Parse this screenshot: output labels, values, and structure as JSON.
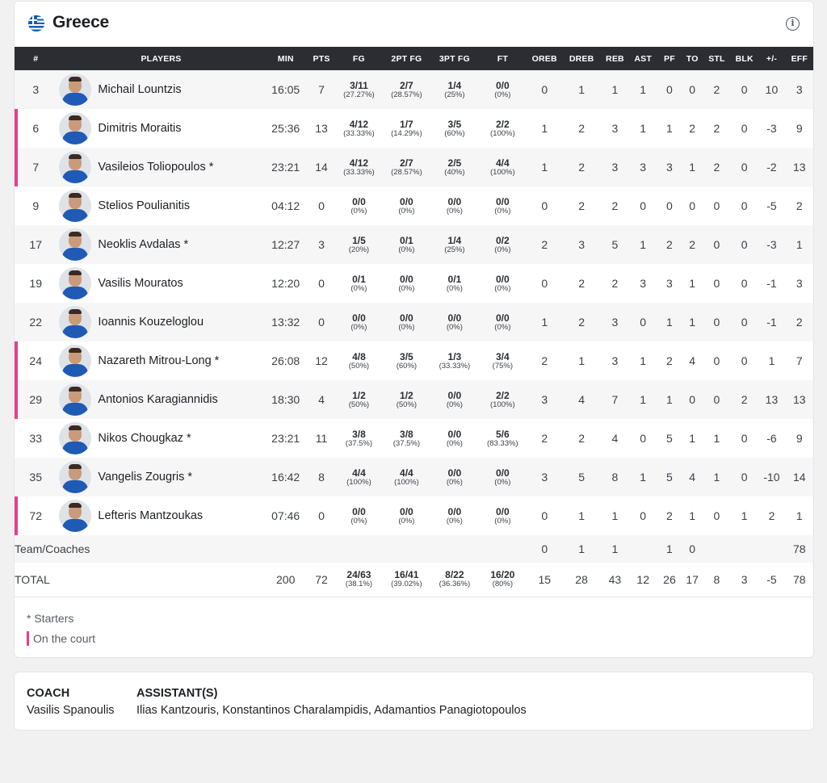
{
  "team": {
    "name": "Greece",
    "flag_icon": "greece-flag-icon",
    "info_icon": "info-icon"
  },
  "headers": [
    "#",
    "PLAYERS",
    "MIN",
    "PTS",
    "FG",
    "2PT FG",
    "3PT FG",
    "FT",
    "OREB",
    "DREB",
    "REB",
    "AST",
    "PF",
    "TO",
    "STL",
    "BLK",
    "+/-",
    "EFF"
  ],
  "players": [
    {
      "num": "3",
      "name": "Michail Lountzis",
      "on_court": false,
      "min": "16:05",
      "pts": "7",
      "fg": "3/11",
      "fg_pct": "(27.27%)",
      "fg2": "2/7",
      "fg2_pct": "(28.57%)",
      "fg3": "1/4",
      "fg3_pct": "(25%)",
      "ft": "0/0",
      "ft_pct": "(0%)",
      "oreb": "0",
      "dreb": "1",
      "reb": "1",
      "ast": "1",
      "pf": "0",
      "to": "0",
      "stl": "2",
      "blk": "0",
      "pm": "10",
      "eff": "3"
    },
    {
      "num": "6",
      "name": "Dimitris Moraitis",
      "on_court": true,
      "min": "25:36",
      "pts": "13",
      "fg": "4/12",
      "fg_pct": "(33.33%)",
      "fg2": "1/7",
      "fg2_pct": "(14.29%)",
      "fg3": "3/5",
      "fg3_pct": "(60%)",
      "ft": "2/2",
      "ft_pct": "(100%)",
      "oreb": "1",
      "dreb": "2",
      "reb": "3",
      "ast": "1",
      "pf": "1",
      "to": "2",
      "stl": "2",
      "blk": "0",
      "pm": "-3",
      "eff": "9"
    },
    {
      "num": "7",
      "name": "Vasileios Toliopoulos *",
      "on_court": true,
      "min": "23:21",
      "pts": "14",
      "fg": "4/12",
      "fg_pct": "(33.33%)",
      "fg2": "2/7",
      "fg2_pct": "(28.57%)",
      "fg3": "2/5",
      "fg3_pct": "(40%)",
      "ft": "4/4",
      "ft_pct": "(100%)",
      "oreb": "1",
      "dreb": "2",
      "reb": "3",
      "ast": "3",
      "pf": "3",
      "to": "1",
      "stl": "2",
      "blk": "0",
      "pm": "-2",
      "eff": "13"
    },
    {
      "num": "9",
      "name": "Stelios Poulianitis",
      "on_court": false,
      "min": "04:12",
      "pts": "0",
      "fg": "0/0",
      "fg_pct": "(0%)",
      "fg2": "0/0",
      "fg2_pct": "(0%)",
      "fg3": "0/0",
      "fg3_pct": "(0%)",
      "ft": "0/0",
      "ft_pct": "(0%)",
      "oreb": "0",
      "dreb": "2",
      "reb": "2",
      "ast": "0",
      "pf": "0",
      "to": "0",
      "stl": "0",
      "blk": "0",
      "pm": "-5",
      "eff": "2"
    },
    {
      "num": "17",
      "name": "Neoklis Avdalas *",
      "on_court": false,
      "min": "12:27",
      "pts": "3",
      "fg": "1/5",
      "fg_pct": "(20%)",
      "fg2": "0/1",
      "fg2_pct": "(0%)",
      "fg3": "1/4",
      "fg3_pct": "(25%)",
      "ft": "0/2",
      "ft_pct": "(0%)",
      "oreb": "2",
      "dreb": "3",
      "reb": "5",
      "ast": "1",
      "pf": "2",
      "to": "2",
      "stl": "0",
      "blk": "0",
      "pm": "-3",
      "eff": "1"
    },
    {
      "num": "19",
      "name": "Vasilis Mouratos",
      "on_court": false,
      "min": "12:20",
      "pts": "0",
      "fg": "0/1",
      "fg_pct": "(0%)",
      "fg2": "0/0",
      "fg2_pct": "(0%)",
      "fg3": "0/1",
      "fg3_pct": "(0%)",
      "ft": "0/0",
      "ft_pct": "(0%)",
      "oreb": "0",
      "dreb": "2",
      "reb": "2",
      "ast": "3",
      "pf": "3",
      "to": "1",
      "stl": "0",
      "blk": "0",
      "pm": "-1",
      "eff": "3"
    },
    {
      "num": "22",
      "name": "Ioannis Kouzeloglou",
      "on_court": false,
      "min": "13:32",
      "pts": "0",
      "fg": "0/0",
      "fg_pct": "(0%)",
      "fg2": "0/0",
      "fg2_pct": "(0%)",
      "fg3": "0/0",
      "fg3_pct": "(0%)",
      "ft": "0/0",
      "ft_pct": "(0%)",
      "oreb": "1",
      "dreb": "2",
      "reb": "3",
      "ast": "0",
      "pf": "1",
      "to": "1",
      "stl": "0",
      "blk": "0",
      "pm": "-1",
      "eff": "2"
    },
    {
      "num": "24",
      "name": "Nazareth Mitrou-Long *",
      "on_court": true,
      "min": "26:08",
      "pts": "12",
      "fg": "4/8",
      "fg_pct": "(50%)",
      "fg2": "3/5",
      "fg2_pct": "(60%)",
      "fg3": "1/3",
      "fg3_pct": "(33.33%)",
      "ft": "3/4",
      "ft_pct": "(75%)",
      "oreb": "2",
      "dreb": "1",
      "reb": "3",
      "ast": "1",
      "pf": "2",
      "to": "4",
      "stl": "0",
      "blk": "0",
      "pm": "1",
      "eff": "7"
    },
    {
      "num": "29",
      "name": "Antonios Karagiannidis",
      "on_court": true,
      "min": "18:30",
      "pts": "4",
      "fg": "1/2",
      "fg_pct": "(50%)",
      "fg2": "1/2",
      "fg2_pct": "(50%)",
      "fg3": "0/0",
      "fg3_pct": "(0%)",
      "ft": "2/2",
      "ft_pct": "(100%)",
      "oreb": "3",
      "dreb": "4",
      "reb": "7",
      "ast": "1",
      "pf": "1",
      "to": "0",
      "stl": "0",
      "blk": "2",
      "pm": "13",
      "eff": "13"
    },
    {
      "num": "33",
      "name": "Nikos Chougkaz *",
      "on_court": false,
      "min": "23:21",
      "pts": "11",
      "fg": "3/8",
      "fg_pct": "(37.5%)",
      "fg2": "3/8",
      "fg2_pct": "(37.5%)",
      "fg3": "0/0",
      "fg3_pct": "(0%)",
      "ft": "5/6",
      "ft_pct": "(83.33%)",
      "oreb": "2",
      "dreb": "2",
      "reb": "4",
      "ast": "0",
      "pf": "5",
      "to": "1",
      "stl": "1",
      "blk": "0",
      "pm": "-6",
      "eff": "9"
    },
    {
      "num": "35",
      "name": "Vangelis Zougris *",
      "on_court": false,
      "min": "16:42",
      "pts": "8",
      "fg": "4/4",
      "fg_pct": "(100%)",
      "fg2": "4/4",
      "fg2_pct": "(100%)",
      "fg3": "0/0",
      "fg3_pct": "(0%)",
      "ft": "0/0",
      "ft_pct": "(0%)",
      "oreb": "3",
      "dreb": "5",
      "reb": "8",
      "ast": "1",
      "pf": "5",
      "to": "4",
      "stl": "1",
      "blk": "0",
      "pm": "-10",
      "eff": "14"
    },
    {
      "num": "72",
      "name": "Lefteris Mantzoukas",
      "on_court": true,
      "min": "07:46",
      "pts": "0",
      "fg": "0/0",
      "fg_pct": "(0%)",
      "fg2": "0/0",
      "fg2_pct": "(0%)",
      "fg3": "0/0",
      "fg3_pct": "(0%)",
      "ft": "0/0",
      "ft_pct": "(0%)",
      "oreb": "0",
      "dreb": "1",
      "reb": "1",
      "ast": "0",
      "pf": "2",
      "to": "1",
      "stl": "0",
      "blk": "1",
      "pm": "2",
      "eff": "1"
    }
  ],
  "team_row": {
    "label": "Team/Coaches",
    "oreb": "0",
    "dreb": "1",
    "reb": "1",
    "ast": "",
    "pf": "1",
    "to": "0",
    "stl": "",
    "blk": "",
    "pm": "",
    "eff": "78"
  },
  "total_row": {
    "label": "TOTAL",
    "min": "200",
    "pts": "72",
    "fg": "24/63",
    "fg_pct": "(38.1%)",
    "fg2": "16/41",
    "fg2_pct": "(39.02%)",
    "fg3": "8/22",
    "fg3_pct": "(36.36%)",
    "ft": "16/20",
    "ft_pct": "(80%)",
    "oreb": "15",
    "dreb": "28",
    "reb": "43",
    "ast": "12",
    "pf": "26",
    "to": "17",
    "stl": "8",
    "blk": "3",
    "pm": "-5",
    "eff": "78"
  },
  "legend": {
    "starters": "* Starters",
    "on_court": "On the court"
  },
  "coaches": {
    "coach_title": "COACH",
    "coach_name": "Vasilis Spanoulis",
    "assistant_title": "ASSISTANT(S)",
    "assistant_names": "Ilias Kantzouris, Konstantinos Charalampidis, Adamantios Panagiotopoulos"
  },
  "colors": {
    "header_bg": "#2b2d33",
    "on_court_accent": "#e83e8c",
    "row_alt": "#f6f6f7"
  }
}
